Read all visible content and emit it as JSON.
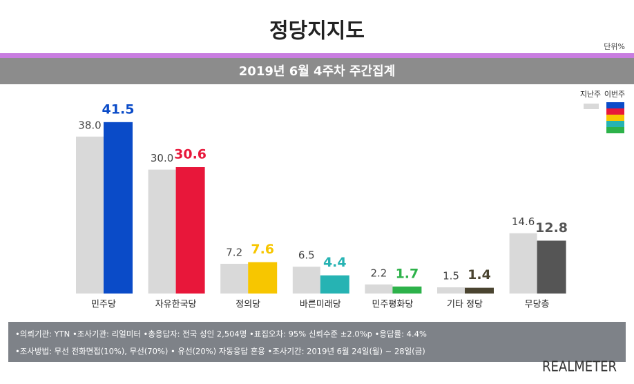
{
  "chart_data": {
    "type": "bar",
    "title": "정당지지도",
    "unit": "단위%",
    "subtitle": "2019년 6월 4주차 주간집계",
    "categories": [
      "민주당",
      "자유한국당",
      "정의당",
      "바른미래당",
      "민주평화당",
      "기타 정당",
      "무당층"
    ],
    "series": [
      {
        "name": "지난주",
        "color": "#d9d9d9",
        "values": [
          38.0,
          30.0,
          7.2,
          6.5,
          2.2,
          1.5,
          14.6
        ],
        "value_labels": [
          "38.0",
          "30.0",
          "7.2",
          "6.5",
          "2.2",
          "1.5",
          "14.6"
        ]
      },
      {
        "name": "이번주",
        "colors": [
          "#0a4bc8",
          "#e8173a",
          "#f7c600",
          "#26b3b3",
          "#2db24a",
          "#4a4430",
          "#555555"
        ],
        "values": [
          41.5,
          30.6,
          7.6,
          4.4,
          1.7,
          1.4,
          12.8
        ]
      }
    ],
    "footnotes": [
      "•의뢰기관: YTN •조사기관: 리얼미터 •총응답자: 전국 성인 2,504명 •표집오차: 95% 신뢰수준 ±2.0%p •응답률: 4.4%",
      "•조사방법: 무선 전화면접(10%), 무선(70%) • 유선(20%) 자동응답 혼용 •조사기간: 2019년 6월 24일(월) ~ 28일(금)"
    ],
    "source": "REALMETER"
  }
}
